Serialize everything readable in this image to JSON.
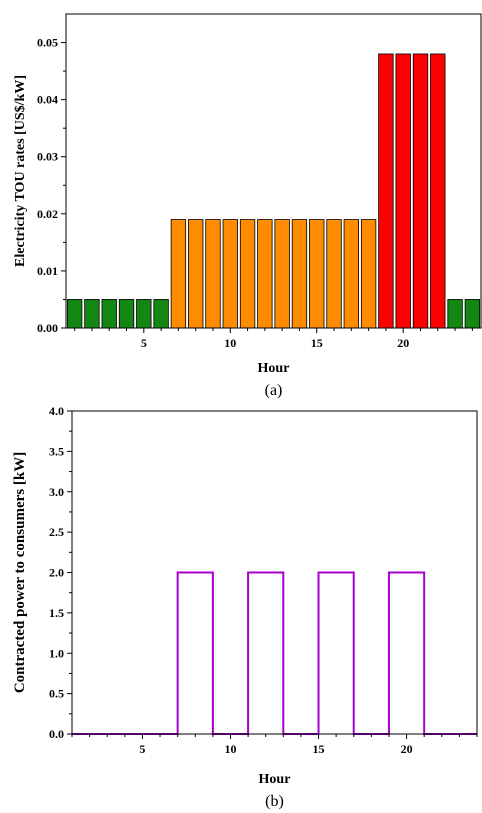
{
  "chart_data": [
    {
      "type": "bar",
      "caption": "(a)",
      "xlabel": "Hour",
      "ylabel": "Electricity TOU rates [US$/kW]",
      "xlim": [
        0.5,
        24.5
      ],
      "ylim": [
        0,
        0.055
      ],
      "xticks": [
        5,
        10,
        15,
        20
      ],
      "yticks": [
        0.0,
        0.01,
        0.02,
        0.03,
        0.04,
        0.05
      ],
      "ytick_labels": [
        "0.00",
        "0.01",
        "0.02",
        "0.03",
        "0.04",
        "0.05"
      ],
      "x": [
        1,
        2,
        3,
        4,
        5,
        6,
        7,
        8,
        9,
        10,
        11,
        12,
        13,
        14,
        15,
        16,
        17,
        18,
        19,
        20,
        21,
        22,
        23,
        24
      ],
      "values": [
        0.005,
        0.005,
        0.005,
        0.005,
        0.005,
        0.005,
        0.019,
        0.019,
        0.019,
        0.019,
        0.019,
        0.019,
        0.019,
        0.019,
        0.019,
        0.019,
        0.019,
        0.019,
        0.048,
        0.048,
        0.048,
        0.048,
        0.005,
        0.005
      ],
      "colors": [
        "#128712",
        "#128712",
        "#128712",
        "#128712",
        "#128712",
        "#128712",
        "#ff8c00",
        "#ff8c00",
        "#ff8c00",
        "#ff8c00",
        "#ff8c00",
        "#ff8c00",
        "#ff8c00",
        "#ff8c00",
        "#ff8c00",
        "#ff8c00",
        "#ff8c00",
        "#ff8c00",
        "#ff0000",
        "#ff0000",
        "#ff0000",
        "#ff0000",
        "#128712",
        "#128712"
      ]
    },
    {
      "type": "line",
      "step": true,
      "caption": "(b)",
      "xlabel": "Hour",
      "ylabel": "Contracted power to consumers [kW]",
      "xlim": [
        1,
        24
      ],
      "ylim": [
        0,
        4.0
      ],
      "xticks": [
        5,
        10,
        15,
        20
      ],
      "yticks": [
        0.0,
        0.5,
        1.0,
        1.5,
        2.0,
        2.5,
        3.0,
        3.5,
        4.0
      ],
      "ytick_labels": [
        "0.0",
        "0.5",
        "1.0",
        "1.5",
        "2.0",
        "2.5",
        "3.0",
        "3.5",
        "4.0"
      ],
      "x": [
        1,
        7,
        7,
        9,
        9,
        11,
        11,
        13,
        13,
        15,
        15,
        17,
        17,
        19,
        19,
        21,
        21,
        24
      ],
      "y": [
        0,
        0,
        2,
        2,
        0,
        0,
        2,
        2,
        0,
        0,
        2,
        2,
        0,
        0,
        2,
        2,
        0,
        0
      ],
      "color": "#aa00cc"
    }
  ]
}
